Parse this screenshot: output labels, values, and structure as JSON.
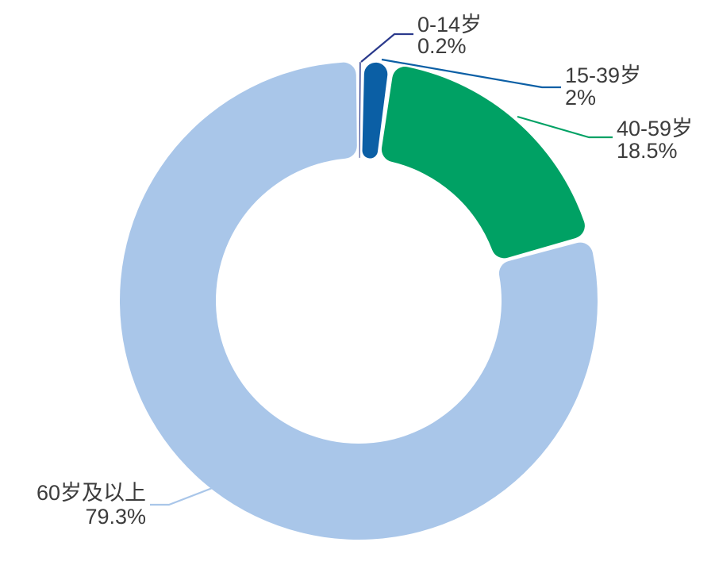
{
  "page": {
    "background_color": "#ffffff",
    "text_color": "#3c3c3c"
  },
  "chart_data": {
    "type": "pie",
    "subtype": "donut",
    "title": "",
    "xlabel": "",
    "ylabel": "",
    "legend": "none",
    "labels_position": "outside-leader-lines",
    "unit": "%",
    "categories": [
      "0-14岁",
      "15-39岁",
      "40-59岁",
      "60岁及以上"
    ],
    "values": [
      0.2,
      2,
      18.5,
      79.3
    ],
    "value_labels": [
      "0.2%",
      "2%",
      "18.5%",
      "79.3%"
    ],
    "colors": [
      "#2b3a8c",
      "#0b5fa5",
      "#00a164",
      "#a9c6e9"
    ],
    "label_text_color": "#3c3c3c",
    "gap_color": "#ffffff"
  }
}
